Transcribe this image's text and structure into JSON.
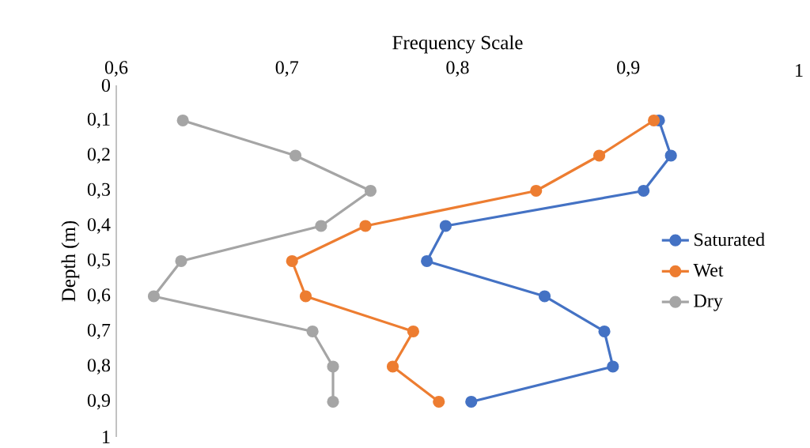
{
  "chart_data": {
    "type": "line",
    "xlabel": "Frequency Scale",
    "ylabel": "Depth (m)",
    "x": [
      0.1,
      0.2,
      0.3,
      0.4,
      0.5,
      0.6,
      0.7,
      0.8,
      0.9
    ],
    "xlim": [
      0.6,
      1
    ],
    "xticks": [
      {
        "value": 0.6,
        "label": "0,6"
      },
      {
        "value": 0.7,
        "label": "0,7"
      },
      {
        "value": 0.8,
        "label": "0,8"
      },
      {
        "value": 0.9,
        "label": "0,9"
      },
      {
        "value": 1,
        "label": "1"
      }
    ],
    "ylim": [
      1,
      0
    ],
    "yticks": [
      {
        "value": 0,
        "label": "0"
      },
      {
        "value": 0.1,
        "label": "0,1"
      },
      {
        "value": 0.2,
        "label": "0,2"
      },
      {
        "value": 0.3,
        "label": "0,3"
      },
      {
        "value": 0.4,
        "label": "0,4"
      },
      {
        "value": 0.5,
        "label": "0,5"
      },
      {
        "value": 0.6,
        "label": "0,6"
      },
      {
        "value": 0.7,
        "label": "0,7"
      },
      {
        "value": 0.8,
        "label": "0,8"
      },
      {
        "value": 0.9,
        "label": "0,9"
      },
      {
        "value": 1,
        "label": "1"
      }
    ],
    "series": [
      {
        "name": "Saturated",
        "color": "#4472c4",
        "values": [
          0.918,
          0.925,
          0.909,
          0.793,
          0.782,
          0.851,
          0.886,
          0.891,
          0.808
        ]
      },
      {
        "name": "Wet",
        "color": "#ed7d31",
        "values": [
          0.915,
          0.883,
          0.846,
          0.746,
          0.703,
          0.711,
          0.774,
          0.762,
          0.789
        ]
      },
      {
        "name": "Dry",
        "color": "#a5a5a5",
        "values": [
          0.639,
          0.705,
          0.749,
          0.72,
          0.638,
          0.622,
          0.715,
          0.727,
          0.727
        ]
      }
    ],
    "orientation": "horizontal",
    "legend": "right",
    "marker": "circle",
    "line_style": "solid",
    "grid": false
  }
}
